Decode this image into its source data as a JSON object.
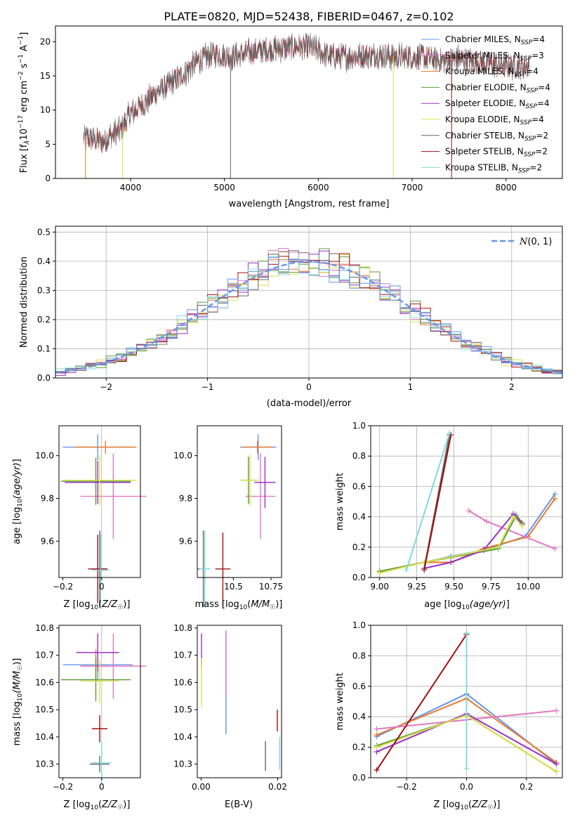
{
  "figure": {
    "title": "PLATE=0820, MJD=52438, FIBERID=0467, z=0.102"
  },
  "colors": {
    "blue": "#6495ED",
    "pink": "#E377C2",
    "orange": "#E8782A",
    "green": "#5A9B3A",
    "purple": "#9B30C8",
    "yellow": "#D7E34A",
    "gray": "#666666",
    "darkred": "#A01010",
    "cyan": "#80D8DF"
  },
  "chart_data": [
    {
      "id": "spectrum",
      "type": "line",
      "xlabel": "wavelength [Angstrom, rest frame]",
      "ylabel": "Flux [f_λ10^-17 erg cm^-2 s^-1 A^-1]",
      "xlim": [
        3200,
        8600
      ],
      "ylim": [
        0,
        22.3
      ],
      "xticks": [
        4000,
        5000,
        6000,
        7000,
        8000
      ],
      "yticks": [
        0,
        5,
        10,
        15,
        20
      ],
      "grid": false,
      "legend_position": "upper-right",
      "legend": [
        {
          "label": "Chabrier MILES, N",
          "sub": "SSP",
          "suffix": "=4",
          "color": "blue"
        },
        {
          "label": "Salpeter MILES, N",
          "sub": "SSP",
          "suffix": "=3",
          "color": "pink"
        },
        {
          "label": "Kroupa MILES, N",
          "sub": "SSP",
          "suffix": "=4",
          "color": "orange"
        },
        {
          "label": "Chabrier ELODIE, N",
          "sub": "SSP",
          "suffix": "=4",
          "color": "green"
        },
        {
          "label": "Salpeter ELODIE, N",
          "sub": "SSP",
          "suffix": "=4",
          "color": "purple"
        },
        {
          "label": "Kroupa ELODIE, N",
          "sub": "SSP",
          "suffix": "=4",
          "color": "yellow"
        },
        {
          "label": "Chabrier STELIB, N",
          "sub": "SSP",
          "suffix": "=2",
          "color": "gray"
        },
        {
          "label": "Salpeter STELIB, N",
          "sub": "SSP",
          "suffix": "=2",
          "color": "darkred"
        },
        {
          "label": "Kroupa STELIB, N",
          "sub": "SSP",
          "suffix": "=2",
          "color": "cyan"
        }
      ],
      "continuum": [
        [
          3500,
          6.0
        ],
        [
          3700,
          5.4
        ],
        [
          3900,
          7.2
        ],
        [
          4000,
          9.5
        ],
        [
          4100,
          10.5
        ],
        [
          4300,
          12.8
        ],
        [
          4500,
          14.5
        ],
        [
          4700,
          17.0
        ],
        [
          4900,
          18.2
        ],
        [
          5100,
          17.8
        ],
        [
          5300,
          18.6
        ],
        [
          5500,
          18.9
        ],
        [
          5700,
          19.2
        ],
        [
          5900,
          19.3
        ],
        [
          6100,
          18.0
        ],
        [
          6300,
          17.8
        ],
        [
          6500,
          18.0
        ],
        [
          6700,
          18.0
        ],
        [
          6900,
          17.7
        ],
        [
          7100,
          17.8
        ],
        [
          7300,
          17.2
        ],
        [
          7500,
          17.5
        ],
        [
          7700,
          17.0
        ],
        [
          7900,
          16.6
        ],
        [
          8100,
          16.4
        ],
        [
          8250,
          16.5
        ]
      ],
      "spikes": [
        {
          "x": 3520,
          "color": "orange"
        },
        {
          "x": 3915,
          "color": "yellow"
        },
        {
          "x": 5065,
          "color": "gray"
        },
        {
          "x": 6800,
          "color": "yellow"
        },
        {
          "x": 7420,
          "color": "darkred"
        }
      ]
    },
    {
      "id": "residuals",
      "type": "step-histogram",
      "xlabel": "(data-model)/error",
      "ylabel": "Normed distribution",
      "xlim": [
        -2.5,
        2.5
      ],
      "ylim": [
        0,
        0.52
      ],
      "xticks": [
        -2,
        -1,
        0,
        1,
        2
      ],
      "yticks": [
        0.0,
        0.1,
        0.2,
        0.3,
        0.4,
        0.5
      ],
      "grid": true,
      "legend_position": "upper-right",
      "gaussian": {
        "label": "N(0,1)",
        "mu": 0,
        "sigma": 1,
        "color": "blue"
      },
      "bin_width": 0.1
    },
    {
      "id": "age-vs-Z",
      "type": "errorbar",
      "xlabel": "Z [log10(Z/Z☉)]",
      "ylabel": "age [log10(age/yr)]",
      "xlim": [
        -0.22,
        0.2
      ],
      "ylim": [
        9.43,
        10.14
      ],
      "xticks": [
        -0.2,
        0.0
      ],
      "yticks": [
        9.6,
        9.8,
        10.0
      ],
      "points": [
        {
          "x": -0.02,
          "y": 10.04,
          "xerr": 0.18,
          "yerr": 0.06,
          "color": "blue"
        },
        {
          "x": 0.02,
          "y": 10.04,
          "xerr": 0.16,
          "yerr": 0.03,
          "color": "orange"
        },
        {
          "x": 0.06,
          "y": 9.81,
          "xerr": 0.17,
          "yerr": 0.2,
          "color": "pink"
        },
        {
          "x": -0.03,
          "y": 9.88,
          "xerr": 0.18,
          "yerr": 0.11,
          "color": "green"
        },
        {
          "x": -0.02,
          "y": 9.875,
          "xerr": 0.17,
          "yerr": 0.1,
          "color": "purple"
        },
        {
          "x": -0.01,
          "y": 9.885,
          "xerr": 0.19,
          "yerr": 0.12,
          "color": "yellow"
        },
        {
          "x": -0.01,
          "y": 9.47,
          "xerr": 0.04,
          "yerr": 0.18,
          "color": "gray"
        },
        {
          "x": -0.02,
          "y": 9.47,
          "xerr": 0.05,
          "yerr": 0.16,
          "color": "darkred"
        },
        {
          "x": -0.005,
          "y": 9.465,
          "xerr": 0.045,
          "yerr": 0.17,
          "color": "cyan"
        }
      ]
    },
    {
      "id": "age-vs-mass",
      "type": "errorbar",
      "xlabel": "mass [log10(M/M☉)]",
      "ylabel": "",
      "xlim": [
        10.26,
        10.82
      ],
      "ylim": [
        9.43,
        10.14
      ],
      "xticks": [
        10.5,
        10.75
      ],
      "yticks": [
        9.6,
        9.8,
        10.0
      ],
      "points": [
        {
          "x": 10.665,
          "y": 10.04,
          "xerr": 0.12,
          "yerr": 0.06,
          "color": "blue"
        },
        {
          "x": 10.66,
          "y": 10.04,
          "xerr": 0.1,
          "yerr": 0.03,
          "color": "orange"
        },
        {
          "x": 10.68,
          "y": 9.81,
          "xerr": 0.1,
          "yerr": 0.2,
          "color": "pink"
        },
        {
          "x": 10.6,
          "y": 9.885,
          "xerr": 0.05,
          "yerr": 0.11,
          "color": "green"
        },
        {
          "x": 10.71,
          "y": 9.875,
          "xerr": 0.07,
          "yerr": 0.12,
          "color": "purple"
        },
        {
          "x": 10.61,
          "y": 9.885,
          "xerr": 0.06,
          "yerr": 0.12,
          "color": "yellow"
        },
        {
          "x": 10.3,
          "y": 9.47,
          "xerr": 0.04,
          "yerr": 0.18,
          "color": "gray"
        },
        {
          "x": 10.43,
          "y": 9.47,
          "xerr": 0.05,
          "yerr": 0.17,
          "color": "darkred"
        },
        {
          "x": 10.31,
          "y": 9.47,
          "xerr": 0.035,
          "yerr": 0.18,
          "color": "cyan"
        }
      ]
    },
    {
      "id": "massweight-vs-age",
      "type": "line",
      "xlabel": "age [log10(age/yr)]",
      "ylabel": "mass weight",
      "xlim": [
        8.94,
        10.23
      ],
      "ylim": [
        0,
        1.0
      ],
      "xticks": [
        9.0,
        9.25,
        9.5,
        9.75,
        10.0
      ],
      "yticks": [
        0.0,
        0.2,
        0.4,
        0.6,
        0.8,
        1.0
      ],
      "xtick_labels": [
        "9.00",
        "9.25",
        "9.50",
        "9.75",
        "10.00"
      ],
      "grid": true,
      "series": [
        {
          "color": "blue",
          "x": [
            9.0,
            9.3,
            9.48,
            9.7,
            9.98,
            10.18
          ],
          "y": [
            0.04,
            0.1,
            0.14,
            0.18,
            0.27,
            0.55
          ]
        },
        {
          "color": "orange",
          "x": [
            9.0,
            9.3,
            9.48,
            9.7,
            10.0,
            10.18
          ],
          "y": [
            0.04,
            0.1,
            0.1,
            0.19,
            0.27,
            0.52
          ]
        },
        {
          "color": "pink",
          "x": [
            9.6,
            9.72,
            10.18
          ],
          "y": [
            0.44,
            0.37,
            0.19
          ]
        },
        {
          "color": "green",
          "x": [
            9.0,
            9.3,
            9.8,
            9.92,
            9.96
          ],
          "y": [
            0.04,
            0.1,
            0.19,
            0.41,
            0.36
          ]
        },
        {
          "color": "purple",
          "x": [
            9.3,
            9.48,
            9.7,
            9.9,
            9.96
          ],
          "y": [
            0.06,
            0.1,
            0.18,
            0.42,
            0.35
          ]
        },
        {
          "color": "yellow",
          "x": [
            9.0,
            9.3,
            9.8,
            9.9,
            9.96
          ],
          "y": [
            0.03,
            0.1,
            0.2,
            0.4,
            0.34
          ]
        },
        {
          "color": "gray",
          "x": [
            9.3,
            9.47
          ],
          "y": [
            0.06,
            0.94
          ]
        },
        {
          "color": "darkred",
          "x": [
            9.3,
            9.48
          ],
          "y": [
            0.05,
            0.94
          ]
        },
        {
          "color": "cyan",
          "x": [
            9.18,
            9.47
          ],
          "y": [
            0.05,
            0.95
          ]
        }
      ]
    },
    {
      "id": "mass-vs-Z",
      "type": "errorbar",
      "xlabel": "Z [log10(Z/Z☉)]",
      "ylabel": "mass [log10(M/M☉)]",
      "xlim": [
        -0.22,
        0.2
      ],
      "ylim": [
        10.25,
        10.81
      ],
      "xticks": [
        -0.2,
        0.0
      ],
      "yticks": [
        10.3,
        10.4,
        10.5,
        10.6,
        10.7,
        10.8
      ],
      "points": [
        {
          "x": -0.02,
          "y": 10.665,
          "xerr": 0.18,
          "yerr": 0.06,
          "color": "blue"
        },
        {
          "x": -0.03,
          "y": 10.66,
          "xerr": 0.07,
          "yerr": 0.06,
          "color": "orange"
        },
        {
          "x": 0.06,
          "y": 10.66,
          "xerr": 0.17,
          "yerr": 0.12,
          "color": "pink"
        },
        {
          "x": -0.03,
          "y": 10.61,
          "xerr": 0.18,
          "yerr": 0.08,
          "color": "green"
        },
        {
          "x": -0.02,
          "y": 10.71,
          "xerr": 0.11,
          "yerr": 0.07,
          "color": "purple"
        },
        {
          "x": -0.01,
          "y": 10.605,
          "xerr": 0.1,
          "yerr": 0.08,
          "color": "yellow"
        },
        {
          "x": -0.01,
          "y": 10.3,
          "xerr": 0.05,
          "yerr": 0.03,
          "color": "gray"
        },
        {
          "x": -0.01,
          "y": 10.43,
          "xerr": 0.04,
          "yerr": 0.05,
          "color": "darkred"
        },
        {
          "x": 0.0,
          "y": 10.305,
          "xerr": 0.05,
          "yerr": 0.08,
          "color": "cyan"
        }
      ]
    },
    {
      "id": "mass-vs-EBV",
      "type": "errorbar",
      "xlabel": "E(B-V)",
      "ylabel": "",
      "xlim": [
        -0.001,
        0.021
      ],
      "ylim": [
        10.25,
        10.81
      ],
      "xticks": [
        0.0,
        0.02
      ],
      "yticks": [
        10.3,
        10.4,
        10.5,
        10.6,
        10.7,
        10.8
      ],
      "xtick_labels": [
        "0.00",
        "0.02"
      ],
      "points": [
        {
          "x": 0.0065,
          "y": 10.6,
          "xerr": 0,
          "yerr": 0.19,
          "color": "blue"
        },
        {
          "x": 0.0065,
          "y": 10.67,
          "xerr": 0,
          "yerr": 0.12,
          "color": "pink"
        },
        {
          "x": 0.0001,
          "y": 10.72,
          "xerr": 0,
          "yerr": 0.06,
          "color": "purple"
        },
        {
          "x": 0.0001,
          "y": 10.6,
          "xerr": 0,
          "yerr": 0.09,
          "color": "yellow"
        },
        {
          "x": 0.0168,
          "y": 10.33,
          "xerr": 0,
          "yerr": 0.055,
          "color": "gray"
        },
        {
          "x": 0.0199,
          "y": 10.46,
          "xerr": 0,
          "yerr": 0.04,
          "color": "darkred"
        },
        {
          "x": 0.0205,
          "y": 10.34,
          "xerr": 0,
          "yerr": 0.06,
          "color": "cyan"
        }
      ]
    },
    {
      "id": "massweight-vs-Z",
      "type": "line",
      "xlabel": "Z [log10(Z/Z☉)]",
      "ylabel": "mass weight",
      "xlim": [
        -0.32,
        0.32
      ],
      "ylim": [
        0,
        1.0
      ],
      "xticks": [
        -0.2,
        0.0,
        0.2
      ],
      "yticks": [
        0.0,
        0.2,
        0.4,
        0.6,
        0.8,
        1.0
      ],
      "xtick_labels": [
        "−0.2",
        "0.0",
        "0.2"
      ],
      "grid": true,
      "series": [
        {
          "color": "blue",
          "x": [
            -0.3,
            0.0,
            0.3
          ],
          "y": [
            0.27,
            0.55,
            0.09
          ]
        },
        {
          "color": "orange",
          "x": [
            -0.3,
            0.0,
            0.3
          ],
          "y": [
            0.28,
            0.52,
            0.1
          ]
        },
        {
          "color": "pink",
          "x": [
            -0.3,
            0.3
          ],
          "y": [
            0.32,
            0.44
          ]
        },
        {
          "color": "green",
          "x": [
            -0.3,
            0.0,
            0.3
          ],
          "y": [
            0.21,
            0.41,
            0.04
          ]
        },
        {
          "color": "purple",
          "x": [
            -0.3,
            0.0,
            0.3
          ],
          "y": [
            0.17,
            0.42,
            0.09
          ]
        },
        {
          "color": "yellow",
          "x": [
            -0.3,
            0.0,
            0.3
          ],
          "y": [
            0.2,
            0.41,
            0.04
          ]
        },
        {
          "color": "darkred",
          "x": [
            -0.3,
            0.0
          ],
          "y": [
            0.05,
            0.94
          ]
        },
        {
          "color": "cyan",
          "x": [
            0.0,
            0.0
          ],
          "y": [
            0.06,
            0.95
          ]
        }
      ]
    }
  ]
}
